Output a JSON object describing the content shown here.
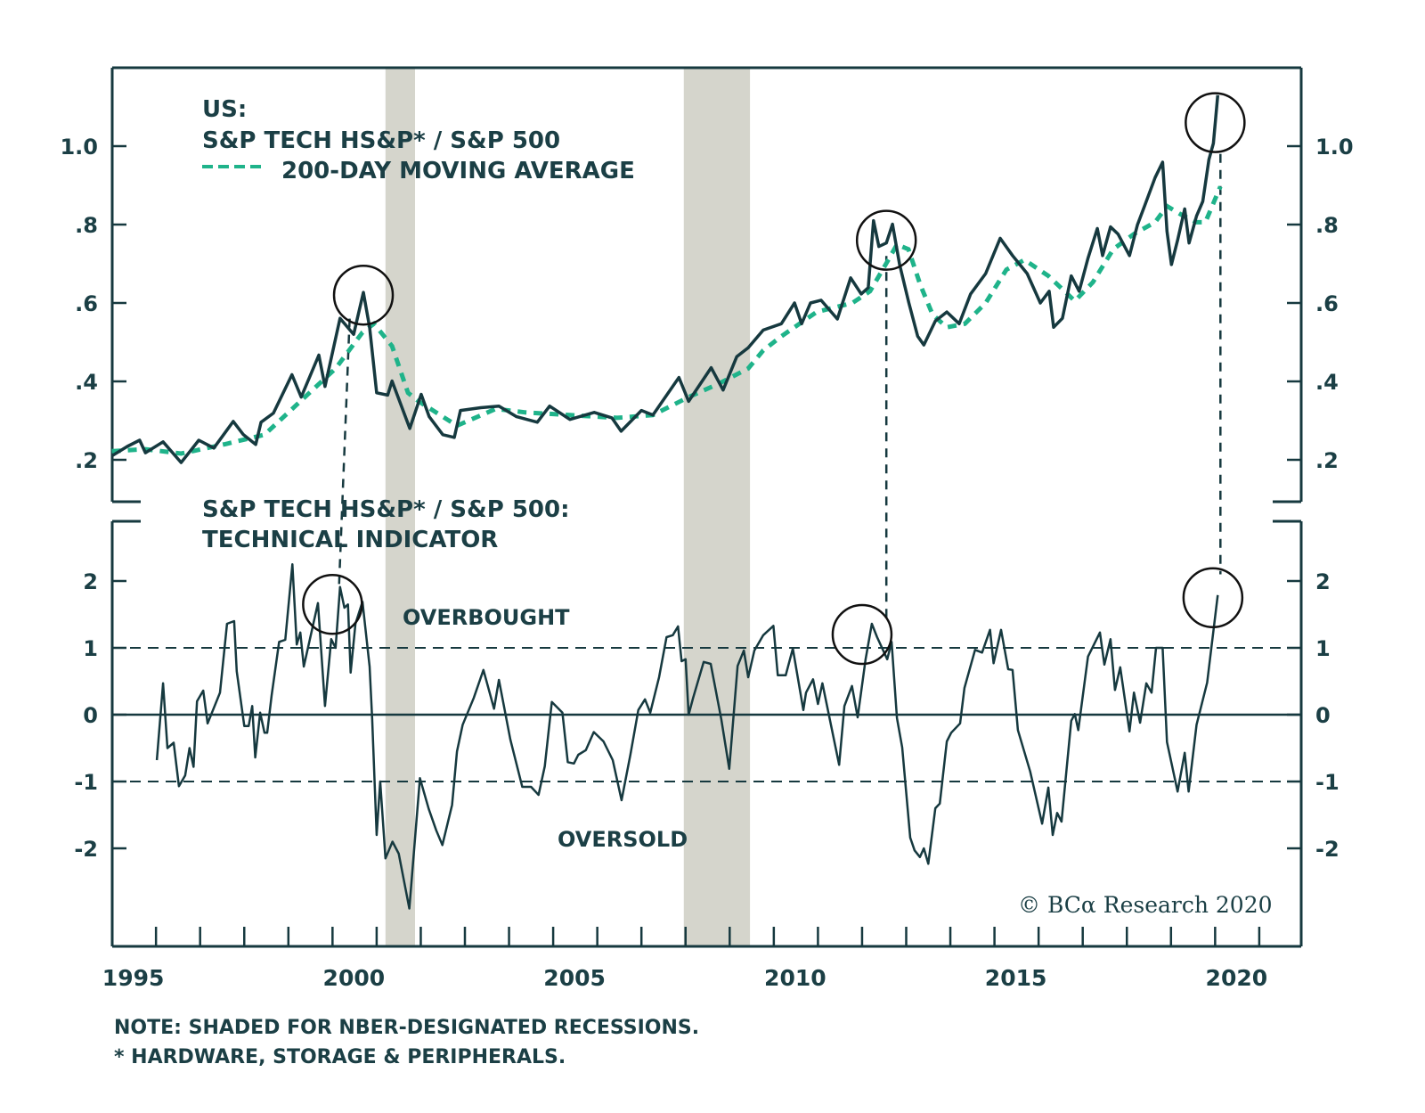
{
  "colors": {
    "ink": "#16393f",
    "ma": "#1fb38a",
    "recession": "#d5d5cc",
    "circle": "#111111"
  },
  "chart_data": [
    {
      "type": "line",
      "panel": "top",
      "title_lines": [
        "US:",
        "S&P TECH HS&P* / S&P 500"
      ],
      "legend": [
        {
          "name": "S&P TECH HS&P* / S&P 500",
          "style": "solid"
        },
        {
          "name": "200-DAY MOVING AVERAGE",
          "style": "dashed"
        }
      ],
      "xlim": [
        1995,
        2022
      ],
      "ylim": [
        0.1,
        1.2
      ],
      "yticks": [
        0.2,
        0.4,
        0.6,
        0.8,
        1.0
      ],
      "ytick_labels": [
        ".2",
        ".4",
        ".6",
        ".8",
        "1.0"
      ],
      "series": [
        {
          "name": "S&P TECH HS&P* / S&P 500",
          "x": [
            1995.0,
            1995.35,
            1995.63,
            1995.76,
            1996.16,
            1996.57,
            1996.97,
            1997.31,
            1997.75,
            1997.98,
            1998.26,
            1998.38,
            1998.66,
            1999.08,
            1999.29,
            1999.69,
            1999.83,
            2000.17,
            2000.48,
            2000.7,
            2000.84,
            2001.0,
            2001.25,
            2001.35,
            2001.75,
            2002.01,
            2002.19,
            2002.5,
            2002.76,
            2002.9,
            2003.36,
            2003.77,
            2004.17,
            2004.64,
            2004.92,
            2005.38,
            2005.93,
            2006.33,
            2006.54,
            2007.0,
            2007.26,
            2007.61,
            2007.85,
            2008.07,
            2008.58,
            2008.85,
            2009.16,
            2009.42,
            2009.76,
            2010.17,
            2010.47,
            2010.63,
            2010.83,
            2011.07,
            2011.44,
            2011.74,
            2011.98,
            2012.14,
            2012.26,
            2012.38,
            2012.55,
            2012.69,
            2012.85,
            2013.06,
            2013.26,
            2013.4,
            2013.66,
            2013.92,
            2014.2,
            2014.46,
            2014.8,
            2015.13,
            2015.41,
            2015.74,
            2016.04,
            2016.24,
            2016.34,
            2016.54,
            2016.74,
            2016.92,
            2017.12,
            2017.33,
            2017.45,
            2017.63,
            2017.8,
            2018.06,
            2018.24,
            2018.4,
            2018.64,
            2018.81,
            2018.91,
            2019.01,
            2019.15,
            2019.31,
            2019.41,
            2019.58,
            2019.72,
            2019.86,
            2019.96,
            2020.06
          ],
          "y": [
            0.21,
            0.234,
            0.25,
            0.218,
            0.246,
            0.193,
            0.25,
            0.23,
            0.298,
            0.264,
            0.239,
            0.296,
            0.319,
            0.417,
            0.36,
            0.467,
            0.387,
            0.561,
            0.52,
            0.627,
            0.538,
            0.371,
            0.365,
            0.401,
            0.28,
            0.367,
            0.31,
            0.264,
            0.257,
            0.326,
            0.333,
            0.337,
            0.31,
            0.296,
            0.337,
            0.303,
            0.321,
            0.307,
            0.273,
            0.326,
            0.314,
            0.371,
            0.41,
            0.349,
            0.435,
            0.378,
            0.463,
            0.486,
            0.531,
            0.547,
            0.6,
            0.547,
            0.6,
            0.607,
            0.559,
            0.664,
            0.623,
            0.639,
            0.81,
            0.744,
            0.753,
            0.801,
            0.698,
            0.6,
            0.515,
            0.493,
            0.554,
            0.577,
            0.547,
            0.623,
            0.675,
            0.765,
            0.721,
            0.675,
            0.6,
            0.63,
            0.538,
            0.561,
            0.669,
            0.63,
            0.714,
            0.79,
            0.721,
            0.794,
            0.776,
            0.721,
            0.799,
            0.847,
            0.92,
            0.959,
            0.783,
            0.698,
            0.76,
            0.84,
            0.753,
            0.822,
            0.859,
            0.966,
            1.007,
            1.13
          ]
        },
        {
          "name": "200-DAY MOVING AVERAGE",
          "x": [
            1995.0,
            1995.76,
            1996.57,
            1997.57,
            1998.46,
            1999.27,
            2000.07,
            2000.68,
            2000.94,
            2001.35,
            2001.71,
            2001.95,
            2002.82,
            2003.7,
            2004.37,
            2005.38,
            2006.45,
            2007.26,
            2008.07,
            2008.75,
            2009.42,
            2009.76,
            2010.17,
            2010.97,
            2011.78,
            2012.18,
            2012.58,
            2012.79,
            2013.05,
            2013.32,
            2013.6,
            2013.92,
            2014.33,
            2014.8,
            2015.27,
            2015.68,
            2016.22,
            2016.82,
            2017.23,
            2017.69,
            2018.16,
            2018.64,
            2018.91,
            2019.25,
            2019.58,
            2019.78,
            2020.12
          ],
          "y": [
            0.222,
            0.227,
            0.216,
            0.24,
            0.264,
            0.349,
            0.433,
            0.525,
            0.547,
            0.49,
            0.371,
            0.349,
            0.287,
            0.33,
            0.321,
            0.314,
            0.307,
            0.314,
            0.36,
            0.394,
            0.433,
            0.479,
            0.515,
            0.577,
            0.6,
            0.63,
            0.707,
            0.749,
            0.737,
            0.646,
            0.57,
            0.538,
            0.547,
            0.6,
            0.685,
            0.71,
            0.669,
            0.605,
            0.653,
            0.737,
            0.776,
            0.806,
            0.847,
            0.824,
            0.806,
            0.806,
            0.897
          ]
        }
      ],
      "highlights": [
        {
          "x": 2000.7,
          "y": 0.62
        },
        {
          "x": 2012.55,
          "y": 0.76
        },
        {
          "x": 2020.0,
          "y": 1.06
        }
      ]
    },
    {
      "type": "line",
      "panel": "bottom",
      "title_lines": [
        "S&P TECH HS&P* / S&P 500:",
        "TECHNICAL INDICATOR"
      ],
      "xlim": [
        1995,
        2022
      ],
      "ylim": [
        -3,
        2.9
      ],
      "yticks": [
        2,
        1,
        0,
        -1,
        -2
      ],
      "ytick_labels": [
        "2",
        "1",
        "0",
        "-1",
        "-2"
      ],
      "reference_lines": [
        {
          "y": 1,
          "style": "dashed"
        },
        {
          "y": 0,
          "style": "solid"
        },
        {
          "y": -1,
          "style": "dashed"
        }
      ],
      "annotations": [
        {
          "text": "OVERBOUGHT",
          "x": 2003.3,
          "y": 1.55
        },
        {
          "text": "OVERSOLD",
          "x": 2006.0,
          "y": -1.75
        }
      ],
      "series": [
        {
          "name": "Technical Indicator",
          "x": [
            1996.02,
            1996.16,
            1996.26,
            1996.4,
            1996.52,
            1996.66,
            1996.76,
            1996.85,
            1996.93,
            1997.07,
            1997.17,
            1997.45,
            1997.61,
            1997.77,
            1997.83,
            1998.0,
            1998.1,
            1998.18,
            1998.25,
            1998.36,
            1998.46,
            1998.52,
            1998.62,
            1998.79,
            1998.93,
            1999.09,
            1999.19,
            1999.27,
            1999.35,
            1999.67,
            1999.83,
            1999.97,
            2000.07,
            2000.17,
            2000.27,
            2000.35,
            2000.41,
            2000.52,
            2000.68,
            2000.84,
            2000.9,
            2001.0,
            2001.08,
            2001.2,
            2001.36,
            2001.5,
            2001.74,
            2001.98,
            2002.18,
            2002.35,
            2002.49,
            2002.71,
            2002.82,
            2002.95,
            2003.2,
            2003.42,
            2003.66,
            2003.77,
            2004.03,
            2004.3,
            2004.5,
            2004.67,
            2004.81,
            2004.97,
            2005.21,
            2005.33,
            2005.47,
            2005.57,
            2005.74,
            2005.92,
            2006.14,
            2006.35,
            2006.55,
            2006.75,
            2006.93,
            2007.08,
            2007.2,
            2007.4,
            2007.57,
            2007.71,
            2007.83,
            2007.91,
            2008.0,
            2008.07,
            2008.17,
            2008.41,
            2008.57,
            2008.81,
            2008.99,
            2009.18,
            2009.32,
            2009.42,
            2009.56,
            2009.76,
            2009.99,
            2010.09,
            2010.27,
            2010.43,
            2010.67,
            2010.73,
            2010.89,
            2011.0,
            2011.1,
            2011.48,
            2011.6,
            2011.77,
            2011.9,
            2012.08,
            2012.22,
            2012.34,
            2012.57,
            2012.67,
            2012.79,
            2012.91,
            2013.09,
            2013.19,
            2013.31,
            2013.4,
            2013.5,
            2013.66,
            2013.76,
            2013.92,
            2014.02,
            2014.22,
            2014.32,
            2014.56,
            2014.72,
            2014.9,
            2014.98,
            2015.15,
            2015.31,
            2015.41,
            2015.53,
            2015.81,
            2016.08,
            2016.22,
            2016.32,
            2016.42,
            2016.52,
            2016.74,
            2016.82,
            2016.9,
            2017.12,
            2017.39,
            2017.49,
            2017.63,
            2017.73,
            2017.85,
            2018.06,
            2018.16,
            2018.3,
            2018.44,
            2018.56,
            2018.66,
            2018.81,
            2018.91,
            2019.15,
            2019.31,
            2019.4,
            2019.58,
            2019.82,
            2020.06
          ],
          "y": [
            -0.68,
            0.47,
            -0.5,
            -0.42,
            -1.07,
            -0.91,
            -0.5,
            -0.78,
            0.2,
            0.36,
            -0.13,
            0.33,
            1.36,
            1.4,
            0.65,
            -0.17,
            -0.17,
            0.13,
            -0.64,
            0.03,
            -0.27,
            -0.27,
            0.29,
            1.09,
            1.12,
            2.25,
            1.05,
            1.23,
            0.72,
            1.67,
            0.13,
            1.13,
            1.0,
            1.91,
            1.6,
            1.65,
            0.63,
            1.36,
            1.69,
            0.72,
            -0.07,
            -1.8,
            -1.0,
            -2.15,
            -1.9,
            -2.08,
            -2.9,
            -0.95,
            -1.41,
            -1.73,
            -1.95,
            -1.35,
            -0.55,
            -0.15,
            0.25,
            0.67,
            0.09,
            0.52,
            -0.37,
            -1.08,
            -1.08,
            -1.2,
            -0.77,
            0.19,
            0.03,
            -0.71,
            -0.73,
            -0.6,
            -0.53,
            -0.26,
            -0.4,
            -0.68,
            -1.28,
            -0.6,
            0.07,
            0.23,
            0.03,
            0.56,
            1.16,
            1.19,
            1.32,
            0.8,
            0.83,
            0.0,
            0.25,
            0.79,
            0.76,
            -0.07,
            -0.81,
            0.73,
            0.96,
            0.56,
            0.96,
            1.19,
            1.33,
            0.59,
            0.59,
            0.99,
            0.07,
            0.33,
            0.53,
            0.16,
            0.47,
            -0.75,
            0.13,
            0.43,
            -0.04,
            0.83,
            1.36,
            1.16,
            0.83,
            1.09,
            -0.05,
            -0.49,
            -1.84,
            -2.03,
            -2.13,
            -2.0,
            -2.23,
            -1.4,
            -1.33,
            -0.4,
            -0.27,
            -0.13,
            0.4,
            0.97,
            0.93,
            1.27,
            0.77,
            1.27,
            0.68,
            0.67,
            -0.23,
            -0.85,
            -1.63,
            -1.09,
            -1.8,
            -1.47,
            -1.6,
            -0.09,
            0.01,
            -0.23,
            0.87,
            1.23,
            0.75,
            1.13,
            0.37,
            0.71,
            -0.25,
            0.33,
            -0.12,
            0.47,
            0.33,
            1.0,
            1.0,
            -0.41,
            -1.15,
            -0.57,
            -1.15,
            -0.15,
            0.48,
            1.79
          ]
        }
      ],
      "highlights": [
        {
          "x": 2000.0,
          "y": 1.65
        },
        {
          "x": 2012.0,
          "y": 1.2
        },
        {
          "x": 2019.95,
          "y": 1.75
        }
      ]
    }
  ],
  "shared": {
    "xticks_years": [
      1996,
      1997,
      1998,
      1999,
      2000,
      2001,
      2002,
      2003,
      2004,
      2005,
      2006,
      2007,
      2008,
      2009,
      2010,
      2011,
      2012,
      2013,
      2014,
      2015,
      2016,
      2017,
      2018,
      2019,
      2020,
      2021
    ],
    "xlabels": [
      {
        "year": 1995,
        "text": "1995"
      },
      {
        "year": 2000,
        "text": "2000"
      },
      {
        "year": 2005,
        "text": "2005"
      },
      {
        "year": 2010,
        "text": "2010"
      },
      {
        "year": 2015,
        "text": "2015"
      },
      {
        "year": 2020,
        "text": "2020"
      }
    ],
    "recessions": [
      {
        "start": 2001.2,
        "end": 2001.87
      },
      {
        "start": 2007.96,
        "end": 2009.46
      }
    ],
    "connectors": [
      2000.55,
      2012.55,
      2020.12
    ]
  },
  "text": {
    "top_title_line1": "US:",
    "top_title_line2": "S&P TECH HS&P* / S&P 500",
    "top_legend_ma": "200-DAY MOVING AVERAGE",
    "bottom_title_line1": "S&P TECH HS&P* / S&P 500:",
    "bottom_title_line2": "TECHNICAL INDICATOR",
    "overbought": "OVERBOUGHT",
    "oversold": "OVERSOLD",
    "copyright": "© BCα Research 2020",
    "note1": "NOTE: SHADED FOR NBER-DESIGNATED RECESSIONS.",
    "note2": "* HARDWARE, STORAGE & PERIPHERALS."
  }
}
